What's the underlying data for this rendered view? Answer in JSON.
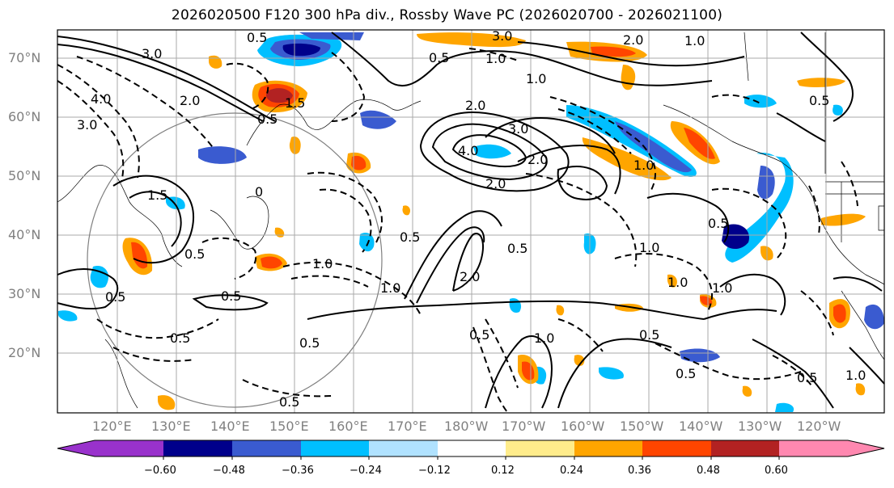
{
  "title": "2026020500 F120 300 hPa div., Rossby Wave PC (2026020700 - 2026021100)",
  "axes": {
    "lat_labels": [
      "70°N",
      "60°N",
      "50°N",
      "40°N",
      "30°N",
      "20°N"
    ],
    "lon_labels": [
      "120°E",
      "130°E",
      "140°E",
      "150°E",
      "160°E",
      "170°E",
      "180°W",
      "170°W",
      "160°W",
      "150°W",
      "140°W",
      "130°W",
      "120°W"
    ],
    "label_color": "#808080"
  },
  "colorbar": {
    "tick_labels": [
      "−0.60",
      "−0.48",
      "−0.36",
      "−0.24",
      "−0.12",
      "0.12",
      "0.24",
      "0.36",
      "0.48",
      "0.60"
    ],
    "colors": [
      "#9932cc",
      "#00008b",
      "#3a5bd0",
      "#00bfff",
      "#b0e2ff",
      "#ffffff",
      "#ffec8b",
      "#ffa500",
      "#ff4500",
      "#b22222",
      "#ff88b0"
    ]
  },
  "contour_labels": [
    {
      "text": "0.5"
    },
    {
      "text": "3.0"
    },
    {
      "text": "0.5"
    },
    {
      "text": "1.0"
    },
    {
      "text": "2.0"
    },
    {
      "text": "3.0"
    },
    {
      "text": "1.0"
    },
    {
      "text": "1.0"
    },
    {
      "text": "1.5"
    },
    {
      "text": "0.5"
    },
    {
      "text": "2.0"
    },
    {
      "text": "4.0"
    },
    {
      "text": "3.0"
    },
    {
      "text": "2.0"
    },
    {
      "text": "3.0"
    },
    {
      "text": "4.0"
    },
    {
      "text": "2.0"
    },
    {
      "text": "2.0"
    },
    {
      "text": "1.0"
    },
    {
      "text": "0.5"
    },
    {
      "text": "1.5"
    },
    {
      "text": "0"
    },
    {
      "text": "0.5"
    },
    {
      "text": "0.5"
    },
    {
      "text": "1.0"
    },
    {
      "text": "0.5"
    },
    {
      "text": "1.0"
    },
    {
      "text": "0.5"
    },
    {
      "text": "0.5"
    },
    {
      "text": "2.0"
    },
    {
      "text": "0.5"
    },
    {
      "text": "1.0"
    },
    {
      "text": "0.5"
    },
    {
      "text": "0.5"
    },
    {
      "text": "1.0"
    },
    {
      "text": "0.5"
    },
    {
      "text": "1.0"
    },
    {
      "text": "1.0"
    },
    {
      "text": "0.5"
    },
    {
      "text": "0.5"
    },
    {
      "text": "0.5"
    },
    {
      "text": "1.0"
    },
    {
      "text": "0.5"
    }
  ]
}
